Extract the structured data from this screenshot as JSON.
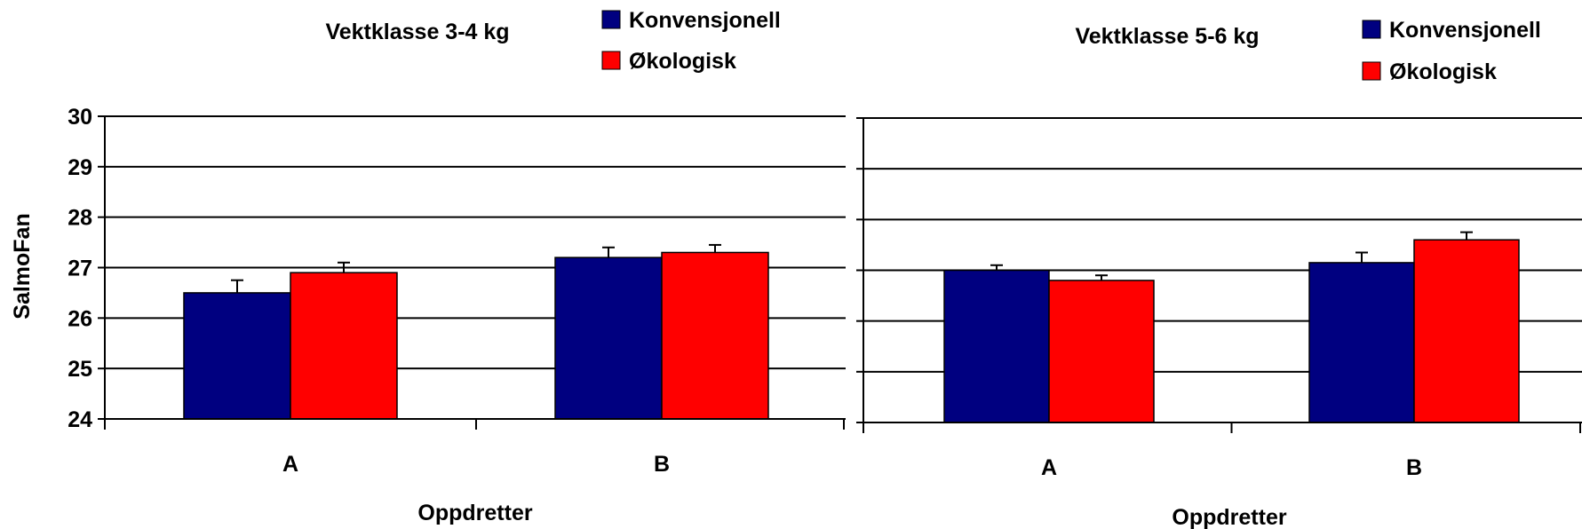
{
  "colors": {
    "konvensjonell": "#000080",
    "okologisk": "#FF0000",
    "background": "#FFFFFF",
    "axis": "#000000"
  },
  "chart_data": [
    {
      "type": "bar",
      "title": "Vektklasse 3-4 kg",
      "xlabel": "Oppdretter",
      "ylabel": "SalmoFan",
      "ylim": [
        24,
        30
      ],
      "yticks": [
        "24",
        "25",
        "26",
        "27",
        "28",
        "29",
        "30"
      ],
      "grid": true,
      "legend_position": "top-right",
      "categories": [
        "A",
        "B"
      ],
      "series": [
        {
          "name": "Konvensjonell",
          "values": [
            26.5,
            27.2
          ],
          "errors": [
            0.25,
            0.2
          ]
        },
        {
          "name": "Økologisk",
          "values": [
            26.9,
            27.3
          ],
          "errors": [
            0.2,
            0.15
          ]
        }
      ]
    },
    {
      "type": "bar",
      "title": "Vektklasse 5-6 kg",
      "xlabel": "Oppdretter",
      "ylabel": "",
      "ylim": [
        24,
        30
      ],
      "yticks": [],
      "grid": true,
      "legend_position": "top-right",
      "categories": [
        "A",
        "B"
      ],
      "series": [
        {
          "name": "Konvensjonell",
          "values": [
            27.0,
            27.15
          ],
          "errors": [
            0.1,
            0.2
          ]
        },
        {
          "name": "Økologisk",
          "values": [
            26.8,
            27.6
          ],
          "errors": [
            0.1,
            0.15
          ]
        }
      ]
    }
  ]
}
